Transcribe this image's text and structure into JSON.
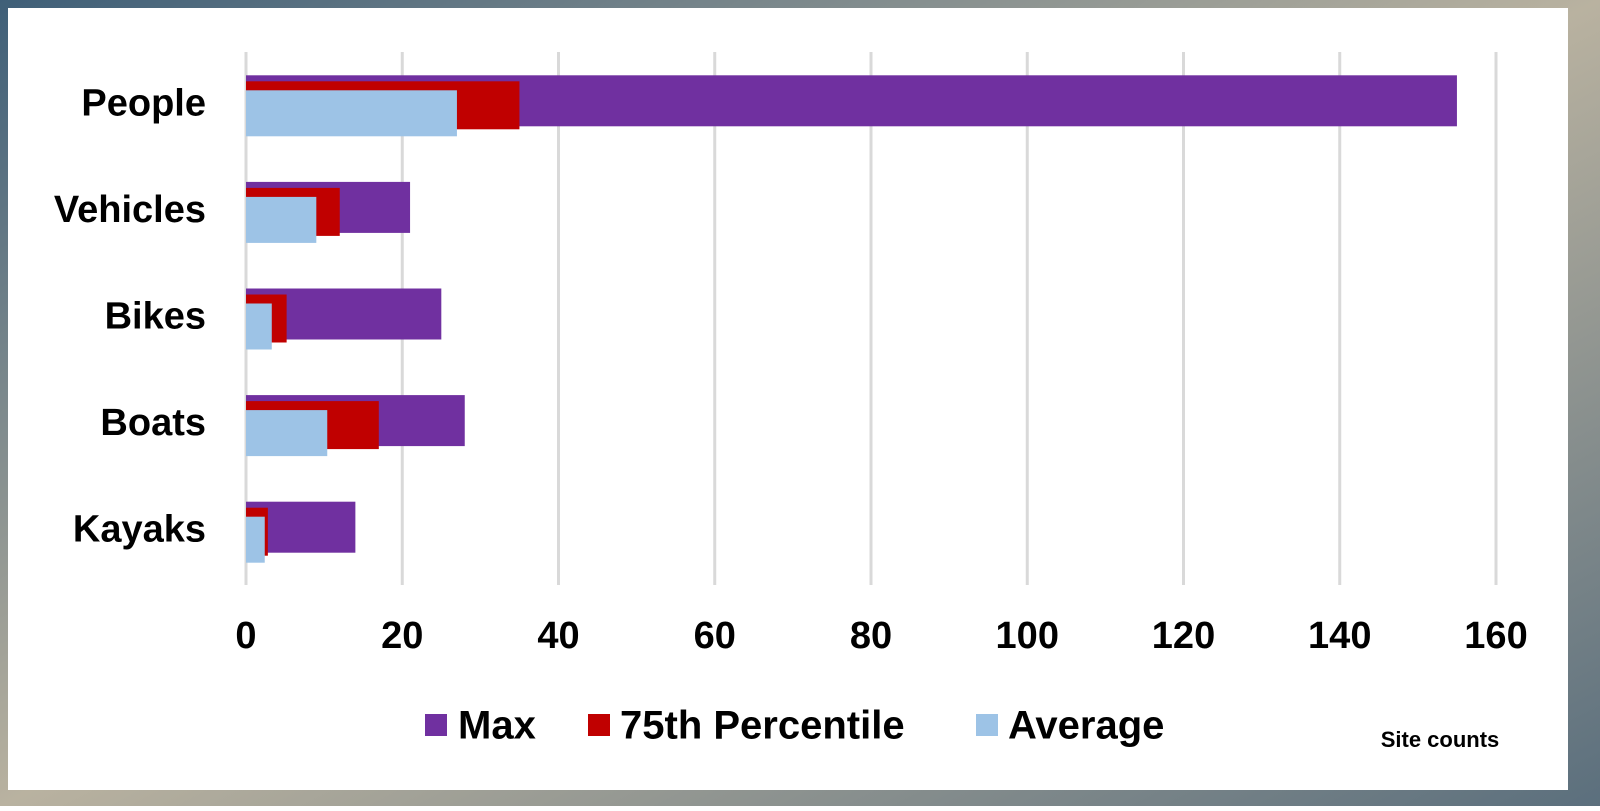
{
  "chart_data": {
    "type": "bar",
    "orientation": "horizontal",
    "categories": [
      "People",
      "Vehicles",
      "Bikes",
      "Boats",
      "Kayaks"
    ],
    "series": [
      {
        "name": "Max",
        "color": "#7030a0",
        "values": [
          155,
          21,
          25,
          28,
          14
        ]
      },
      {
        "name": "75th Percentile",
        "color": "#c00000",
        "values": [
          35,
          12,
          5.2,
          17,
          2.8
        ]
      },
      {
        "name": "Average",
        "color": "#9dc3e6",
        "values": [
          27,
          9,
          3.3,
          10.4,
          2.4
        ]
      }
    ],
    "xlim": [
      0,
      160
    ],
    "xticks": [
      0,
      20,
      40,
      60,
      80,
      100,
      120,
      140,
      160
    ],
    "grid": true,
    "legend": "bottom",
    "annotation": "Site counts"
  }
}
